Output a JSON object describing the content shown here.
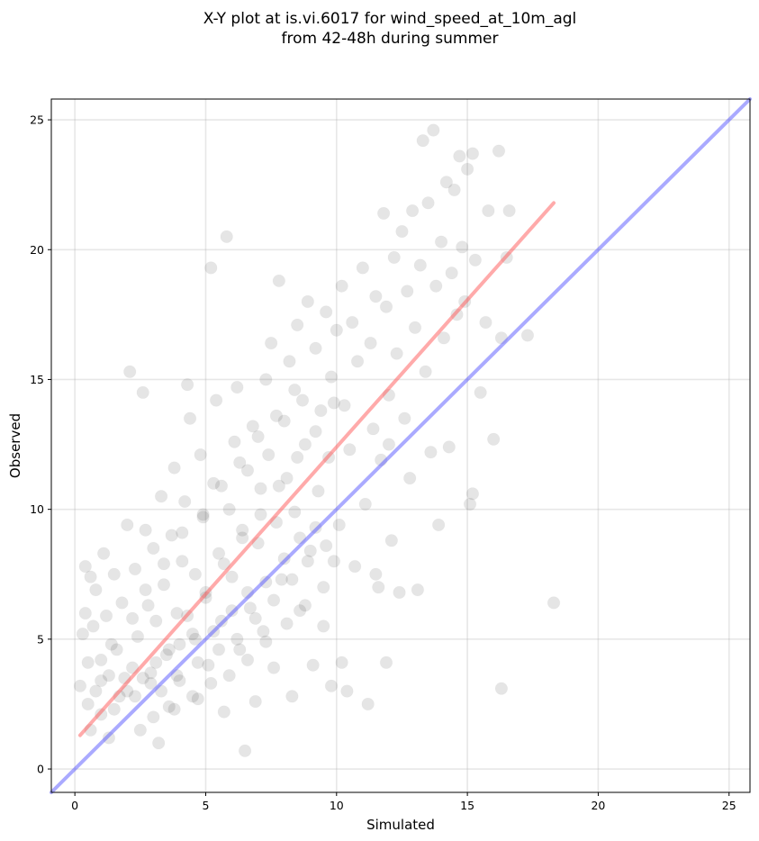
{
  "chart_data": {
    "type": "scatter",
    "title_lines": [
      "X-Y plot at is.vi.6017 for wind_speed_at_10m_agl",
      "from 42-48h during summer"
    ],
    "xlabel": "Simulated",
    "ylabel": "Observed",
    "xlim": [
      -0.9,
      25.8
    ],
    "ylim": [
      -0.9,
      25.8
    ],
    "xticks": [
      0,
      5,
      10,
      15,
      20,
      25
    ],
    "yticks": [
      0,
      5,
      10,
      15,
      20,
      25
    ],
    "grid": true,
    "points_style": {
      "color": "#000000",
      "opacity": 0.1
    },
    "series": [
      {
        "type": "scatter",
        "points": [
          [
            0.2,
            3.2
          ],
          [
            0.3,
            5.2
          ],
          [
            0.4,
            7.8
          ],
          [
            0.4,
            6.0
          ],
          [
            0.5,
            4.1
          ],
          [
            0.5,
            2.5
          ],
          [
            0.6,
            1.5
          ],
          [
            0.6,
            7.4
          ],
          [
            0.7,
            5.5
          ],
          [
            0.8,
            3.0
          ],
          [
            0.8,
            6.9
          ],
          [
            1.0,
            4.2
          ],
          [
            1.0,
            2.1
          ],
          [
            1.1,
            8.3
          ],
          [
            1.2,
            5.9
          ],
          [
            1.3,
            3.6
          ],
          [
            1.3,
            1.2
          ],
          [
            1.5,
            7.5
          ],
          [
            1.6,
            4.6
          ],
          [
            1.7,
            2.8
          ],
          [
            1.8,
            6.4
          ],
          [
            2.0,
            9.4
          ],
          [
            2.1,
            15.3
          ],
          [
            2.2,
            3.9
          ],
          [
            2.3,
            7.7
          ],
          [
            2.4,
            5.1
          ],
          [
            2.5,
            1.5
          ],
          [
            2.6,
            14.5
          ],
          [
            2.7,
            9.2
          ],
          [
            2.8,
            6.3
          ],
          [
            2.9,
            3.3
          ],
          [
            3.0,
            8.5
          ],
          [
            3.1,
            5.7
          ],
          [
            3.2,
            1.0
          ],
          [
            3.3,
            10.5
          ],
          [
            3.4,
            7.1
          ],
          [
            3.5,
            4.4
          ],
          [
            3.6,
            2.4
          ],
          [
            3.7,
            9.0
          ],
          [
            3.8,
            11.6
          ],
          [
            3.9,
            6.0
          ],
          [
            4.0,
            3.4
          ],
          [
            4.1,
            8.0
          ],
          [
            4.2,
            10.3
          ],
          [
            4.3,
            14.8
          ],
          [
            4.4,
            13.5
          ],
          [
            4.5,
            5.2
          ],
          [
            4.6,
            7.5
          ],
          [
            4.7,
            2.7
          ],
          [
            4.8,
            12.1
          ],
          [
            4.9,
            9.7
          ],
          [
            5.0,
            6.6
          ],
          [
            5.1,
            4.0
          ],
          [
            5.2,
            19.3
          ],
          [
            5.3,
            11.0
          ],
          [
            5.4,
            14.2
          ],
          [
            5.5,
            8.3
          ],
          [
            5.6,
            5.7
          ],
          [
            5.7,
            2.2
          ],
          [
            5.8,
            20.5
          ],
          [
            5.9,
            10.0
          ],
          [
            6.0,
            7.4
          ],
          [
            6.1,
            12.6
          ],
          [
            6.2,
            14.7
          ],
          [
            6.3,
            4.6
          ],
          [
            6.4,
            9.2
          ],
          [
            6.5,
            0.7
          ],
          [
            6.6,
            11.5
          ],
          [
            6.7,
            6.2
          ],
          [
            6.8,
            13.2
          ],
          [
            6.9,
            2.6
          ],
          [
            7.0,
            8.7
          ],
          [
            7.1,
            10.8
          ],
          [
            7.2,
            5.3
          ],
          [
            7.3,
            15.0
          ],
          [
            7.4,
            12.1
          ],
          [
            7.5,
            16.4
          ],
          [
            7.6,
            3.9
          ],
          [
            7.7,
            9.5
          ],
          [
            7.8,
            18.8
          ],
          [
            7.9,
            7.3
          ],
          [
            8.0,
            13.4
          ],
          [
            8.1,
            11.2
          ],
          [
            8.2,
            15.7
          ],
          [
            8.3,
            2.8
          ],
          [
            8.4,
            9.9
          ],
          [
            8.5,
            17.1
          ],
          [
            8.6,
            6.1
          ],
          [
            8.7,
            14.2
          ],
          [
            8.8,
            12.5
          ],
          [
            8.9,
            18.0
          ],
          [
            9.0,
            8.4
          ],
          [
            9.1,
            4.0
          ],
          [
            9.2,
            16.2
          ],
          [
            9.3,
            10.7
          ],
          [
            9.4,
            13.8
          ],
          [
            9.5,
            5.5
          ],
          [
            9.6,
            17.6
          ],
          [
            9.7,
            12.0
          ],
          [
            9.8,
            15.1
          ],
          [
            9.9,
            8.0
          ],
          [
            10.0,
            16.9
          ],
          [
            10.1,
            9.4
          ],
          [
            10.2,
            18.6
          ],
          [
            10.3,
            14.0
          ],
          [
            10.4,
            3.0
          ],
          [
            10.5,
            12.3
          ],
          [
            10.6,
            17.2
          ],
          [
            10.7,
            7.8
          ],
          [
            10.8,
            15.7
          ],
          [
            11.0,
            19.3
          ],
          [
            11.1,
            10.2
          ],
          [
            11.2,
            2.5
          ],
          [
            11.3,
            16.4
          ],
          [
            11.4,
            13.1
          ],
          [
            11.5,
            18.2
          ],
          [
            11.6,
            7.0
          ],
          [
            11.7,
            11.9
          ],
          [
            11.8,
            21.4
          ],
          [
            11.9,
            17.8
          ],
          [
            12.0,
            14.4
          ],
          [
            12.1,
            8.8
          ],
          [
            12.2,
            19.7
          ],
          [
            12.3,
            16.0
          ],
          [
            12.4,
            6.8
          ],
          [
            12.5,
            20.7
          ],
          [
            12.6,
            13.5
          ],
          [
            12.7,
            18.4
          ],
          [
            12.8,
            11.2
          ],
          [
            12.9,
            21.5
          ],
          [
            13.0,
            17.0
          ],
          [
            13.1,
            6.9
          ],
          [
            13.2,
            19.4
          ],
          [
            13.3,
            24.2
          ],
          [
            13.4,
            15.3
          ],
          [
            13.5,
            21.8
          ],
          [
            13.6,
            12.2
          ],
          [
            13.7,
            24.6
          ],
          [
            13.8,
            18.6
          ],
          [
            13.9,
            9.4
          ],
          [
            14.0,
            20.3
          ],
          [
            14.1,
            16.6
          ],
          [
            14.2,
            22.6
          ],
          [
            14.3,
            12.4
          ],
          [
            14.4,
            19.1
          ],
          [
            14.5,
            22.3
          ],
          [
            14.6,
            17.5
          ],
          [
            14.7,
            23.6
          ],
          [
            14.8,
            20.1
          ],
          [
            14.9,
            18.0
          ],
          [
            15.0,
            23.1
          ],
          [
            15.1,
            10.2
          ],
          [
            15.2,
            23.7
          ],
          [
            15.3,
            19.6
          ],
          [
            15.5,
            14.5
          ],
          [
            15.7,
            17.2
          ],
          [
            15.8,
            21.5
          ],
          [
            16.0,
            12.7
          ],
          [
            16.2,
            23.8
          ],
          [
            16.3,
            16.6
          ],
          [
            16.5,
            19.7
          ],
          [
            16.6,
            21.5
          ],
          [
            17.3,
            16.7
          ],
          [
            18.3,
            6.4
          ],
          [
            16.3,
            3.1
          ],
          [
            15.2,
            10.6
          ],
          [
            12.0,
            12.5
          ],
          [
            11.5,
            7.5
          ],
          [
            11.9,
            4.1
          ],
          [
            10.2,
            4.1
          ],
          [
            9.8,
            3.2
          ],
          [
            2.3,
            2.8
          ],
          [
            1.9,
            3.5
          ],
          [
            3.1,
            4.1
          ],
          [
            4.0,
            4.8
          ],
          [
            4.6,
            5.0
          ],
          [
            5.3,
            5.3
          ],
          [
            6.0,
            6.1
          ],
          [
            6.6,
            6.8
          ],
          [
            7.3,
            7.2
          ],
          [
            8.0,
            8.1
          ],
          [
            8.6,
            8.9
          ],
          [
            9.2,
            9.3
          ],
          [
            2.9,
            3.7
          ],
          [
            3.6,
            4.6
          ],
          [
            4.3,
            5.9
          ],
          [
            5.0,
            6.8
          ],
          [
            5.7,
            7.9
          ],
          [
            6.4,
            8.9
          ],
          [
            7.1,
            9.8
          ],
          [
            7.8,
            10.9
          ],
          [
            8.5,
            12.0
          ],
          [
            9.2,
            13.0
          ],
          [
            9.9,
            14.1
          ],
          [
            1.5,
            2.3
          ],
          [
            2.0,
            3.0
          ],
          [
            2.6,
            3.5
          ],
          [
            3.3,
            3.0
          ],
          [
            3.9,
            3.6
          ],
          [
            4.7,
            4.1
          ],
          [
            5.5,
            4.6
          ],
          [
            6.2,
            5.0
          ],
          [
            6.9,
            5.8
          ],
          [
            7.6,
            6.5
          ],
          [
            8.3,
            7.3
          ],
          [
            8.9,
            8.0
          ],
          [
            9.6,
            8.6
          ],
          [
            1.0,
            3.4
          ],
          [
            1.4,
            4.8
          ],
          [
            2.2,
            5.8
          ],
          [
            2.7,
            6.9
          ],
          [
            3.4,
            7.9
          ],
          [
            4.1,
            9.1
          ],
          [
            4.9,
            9.8
          ],
          [
            5.6,
            10.9
          ],
          [
            6.3,
            11.8
          ],
          [
            7.0,
            12.8
          ],
          [
            7.7,
            13.6
          ],
          [
            8.4,
            14.6
          ],
          [
            3.0,
            2.0
          ],
          [
            3.8,
            2.3
          ],
          [
            4.5,
            2.8
          ],
          [
            5.2,
            3.3
          ],
          [
            5.9,
            3.6
          ],
          [
            6.6,
            4.2
          ],
          [
            7.3,
            4.9
          ],
          [
            8.1,
            5.6
          ],
          [
            8.8,
            6.3
          ],
          [
            9.5,
            7.0
          ]
        ]
      },
      {
        "type": "line",
        "color": "#ff5555",
        "opacity": 0.5,
        "points": [
          [
            0.2,
            1.3
          ],
          [
            18.3,
            21.8
          ]
        ]
      },
      {
        "type": "line",
        "color": "#5555ff",
        "opacity": 0.5,
        "points": [
          [
            -0.9,
            -0.9
          ],
          [
            25.8,
            25.8
          ]
        ]
      }
    ]
  }
}
